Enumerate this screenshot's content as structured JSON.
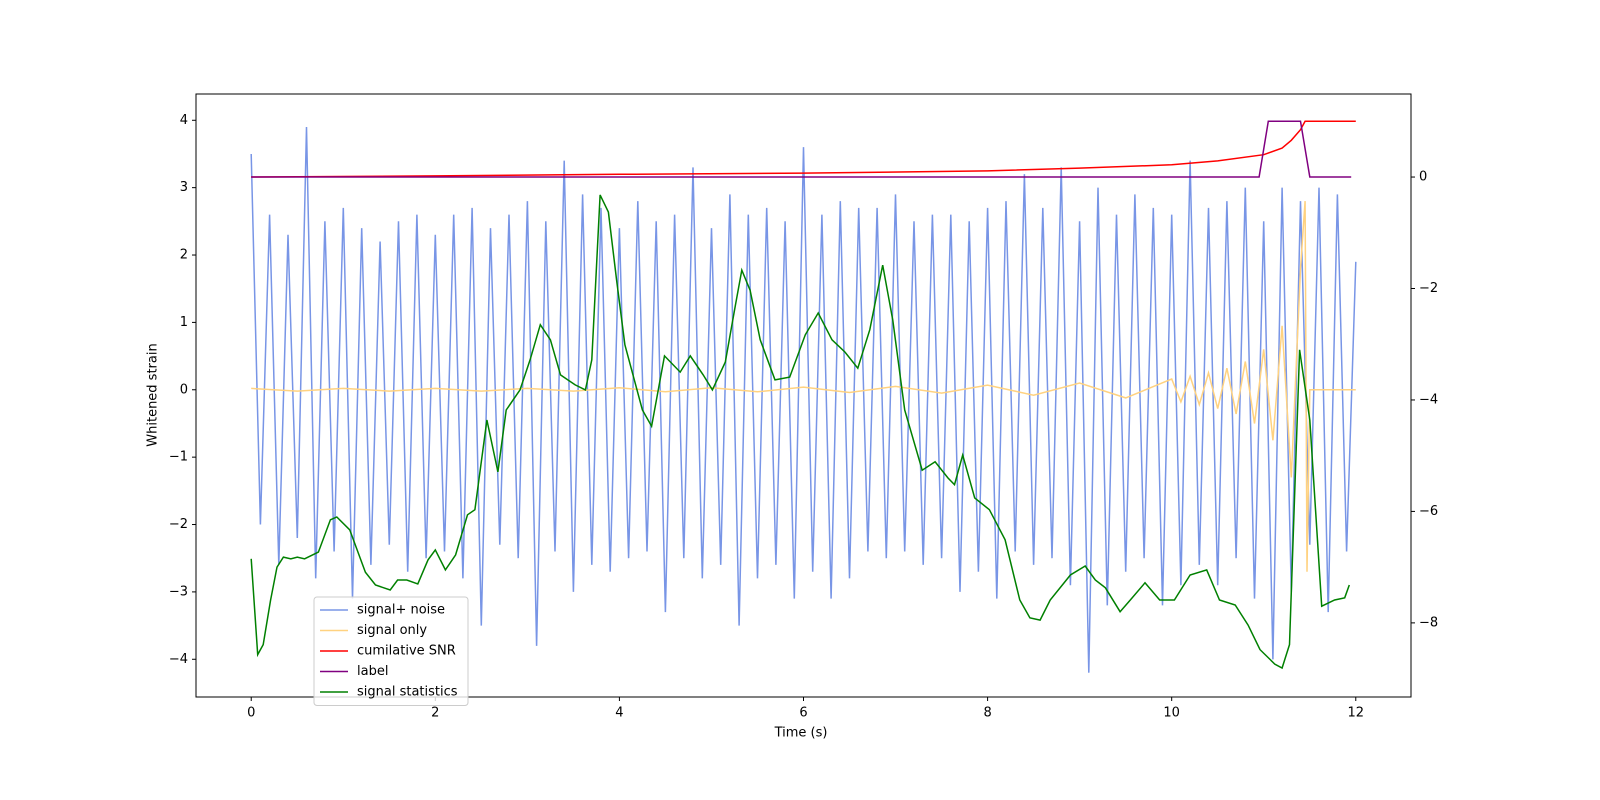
{
  "chart_data": {
    "type": "line",
    "xlabel": "Time (s)",
    "ylabel": "Whitened strain",
    "xlim": [
      -0.6,
      12.6
    ],
    "ylim": [
      -4.56,
      4.39
    ],
    "y2lim": [
      -9.33,
      1.49
    ],
    "xticks": [
      0,
      2,
      4,
      6,
      8,
      10,
      12
    ],
    "yticks": [
      {
        "value": -4,
        "label": "−4"
      },
      {
        "value": -3,
        "label": "−3"
      },
      {
        "value": -2,
        "label": "−2"
      },
      {
        "value": -1,
        "label": "−1"
      },
      0,
      1,
      2,
      3,
      4
    ],
    "y2ticks": [
      {
        "value": -8,
        "label": "−8"
      },
      {
        "value": -6,
        "label": "−6"
      },
      {
        "value": -4,
        "label": "−4"
      },
      {
        "value": -2,
        "label": "−2"
      },
      0
    ],
    "legend": "lower left",
    "x": [
      0,
      0.1,
      0.2,
      0.3,
      0.4,
      0.5,
      0.6,
      0.7,
      0.8,
      0.9,
      1,
      1.1,
      1.2,
      1.3,
      1.4,
      1.5,
      1.6,
      1.7,
      1.8,
      1.9,
      2,
      2.1,
      2.2,
      2.3,
      2.4,
      2.5,
      2.6,
      2.7,
      2.8,
      2.9,
      3,
      3.1,
      3.2,
      3.3,
      3.4,
      3.5,
      3.6,
      3.7,
      3.8,
      3.9,
      4,
      4.1,
      4.2,
      4.3,
      4.4,
      4.5,
      4.6,
      4.7,
      4.8,
      4.9,
      5,
      5.1,
      5.2,
      5.3,
      5.4,
      5.5,
      5.6,
      5.7,
      5.8,
      5.9,
      6,
      6.1,
      6.2,
      6.3,
      6.4,
      6.5,
      6.6,
      6.7,
      6.8,
      6.9,
      7,
      7.1,
      7.2,
      7.3,
      7.4,
      7.5,
      7.6,
      7.7,
      7.8,
      7.9,
      8,
      8.1,
      8.2,
      8.3,
      8.4,
      8.5,
      8.6,
      8.7,
      8.8,
      8.9,
      9,
      9.1,
      9.2,
      9.3,
      9.4,
      9.5,
      9.6,
      9.7,
      9.8,
      9.9,
      10,
      10.1,
      10.2,
      10.3,
      10.4,
      10.5,
      10.6,
      10.7,
      10.8,
      10.9,
      11,
      11.1,
      11.2,
      11.3,
      11.4,
      11.5,
      11.6,
      11.7,
      11.8,
      11.9,
      12
    ],
    "series": [
      {
        "name": "signal+ noise",
        "color": "#7895e6",
        "axis": "y",
        "values": [
          3.5,
          -2.0,
          2.6,
          -2.6,
          2.3,
          -2.2,
          3.9,
          -2.8,
          2.5,
          -2.4,
          2.7,
          -3.1,
          2.4,
          -2.6,
          2.2,
          -2.3,
          2.5,
          -2.7,
          2.6,
          -2.5,
          2.3,
          -2.4,
          2.6,
          -2.8,
          2.7,
          -3.5,
          2.4,
          -2.3,
          2.6,
          -2.5,
          2.8,
          -3.8,
          2.5,
          -2.4,
          3.4,
          -3.0,
          2.9,
          -2.6,
          2.7,
          -2.7,
          2.4,
          -2.5,
          2.8,
          -2.4,
          2.5,
          -3.3,
          2.6,
          -2.5,
          3.3,
          -2.8,
          2.4,
          -2.6,
          2.9,
          -3.5,
          2.6,
          -2.8,
          2.7,
          -2.6,
          2.5,
          -3.1,
          3.6,
          -2.7,
          2.6,
          -3.1,
          2.8,
          -2.8,
          2.7,
          -2.4,
          2.7,
          -2.5,
          2.9,
          -2.4,
          2.5,
          -2.6,
          2.6,
          -2.5,
          2.6,
          -3.0,
          2.5,
          -2.7,
          2.7,
          -3.1,
          2.8,
          -2.4,
          3.2,
          -2.6,
          2.7,
          -2.5,
          3.3,
          -2.9,
          2.5,
          -4.2,
          3.0,
          -3.2,
          2.6,
          -2.7,
          2.9,
          -2.5,
          2.7,
          -3.2,
          2.6,
          -2.9,
          3.4,
          -2.6,
          2.7,
          -2.9,
          2.8,
          -2.5,
          3.0,
          -3.1,
          2.5,
          -4.0,
          3.0,
          -3.0,
          2.8,
          -2.3,
          3.0,
          -3.3,
          2.9,
          -2.4,
          1.9
        ]
      },
      {
        "name": "signal only",
        "color": "#ffd280",
        "axis": "y",
        "x": [
          0,
          0.5,
          1,
          1.5,
          2,
          2.5,
          3,
          3.5,
          4,
          4.5,
          5,
          5.5,
          6,
          6.5,
          7,
          7.5,
          8,
          8.5,
          9,
          9.5,
          10,
          10.1,
          10.2,
          10.3,
          10.4,
          10.5,
          10.6,
          10.7,
          10.8,
          10.9,
          11,
          11.1,
          11.2,
          11.3,
          11.4,
          11.45,
          11.47,
          11.5,
          12
        ],
        "values": [
          0.02,
          -0.02,
          0.02,
          -0.02,
          0.02,
          -0.02,
          0.02,
          -0.02,
          0.03,
          -0.03,
          0.03,
          -0.03,
          0.04,
          -0.04,
          0.05,
          -0.05,
          0.07,
          -0.08,
          0.1,
          -0.12,
          0.16,
          -0.18,
          0.2,
          -0.22,
          0.25,
          -0.28,
          0.32,
          -0.36,
          0.42,
          -0.5,
          0.6,
          -0.75,
          0.95,
          -1.3,
          1.8,
          2.8,
          -2.7,
          0,
          0
        ]
      },
      {
        "name": "cumilative SNR",
        "color": "#ff0000",
        "axis": "y2",
        "x": [
          0,
          2,
          4,
          6,
          8,
          9,
          10,
          10.5,
          11,
          11.2,
          11.3,
          11.4,
          11.45,
          12
        ],
        "values": [
          0,
          0.02,
          0.05,
          0.07,
          0.11,
          0.16,
          0.22,
          0.29,
          0.4,
          0.52,
          0.66,
          0.85,
          1.0,
          1.0
        ]
      },
      {
        "name": "label",
        "color": "#800080",
        "axis": "y2",
        "x": [
          0,
          10.95,
          11.05,
          11.4,
          11.5,
          11.95
        ],
        "values": [
          0,
          0,
          1,
          1,
          0,
          0
        ]
      },
      {
        "name": "signal statistics",
        "color": "#008000",
        "axis": "y2",
        "x": [
          0,
          0.07,
          0.13,
          0.21,
          0.28,
          0.35,
          0.43,
          0.5,
          0.58,
          0.73,
          0.86,
          0.93,
          1.07,
          1.24,
          1.35,
          1.51,
          1.59,
          1.69,
          1.81,
          1.92,
          2.0,
          2.11,
          2.22,
          2.35,
          2.43,
          2.56,
          2.68,
          2.77,
          2.92,
          3.03,
          3.14,
          3.25,
          3.36,
          3.52,
          3.63,
          3.7,
          3.79,
          3.88,
          3.97,
          4.06,
          4.25,
          4.35,
          4.49,
          4.66,
          4.77,
          4.91,
          5.01,
          5.15,
          5.26,
          5.33,
          5.42,
          5.53,
          5.69,
          5.85,
          6.02,
          6.16,
          6.31,
          6.45,
          6.59,
          6.72,
          6.86,
          6.97,
          7.1,
          7.29,
          7.43,
          7.57,
          7.64,
          7.73,
          7.86,
          8.02,
          8.19,
          8.35,
          8.46,
          8.57,
          8.68,
          8.9,
          9.06,
          9.17,
          9.28,
          9.44,
          9.55,
          9.71,
          9.87,
          10.03,
          10.2,
          10.38,
          10.52,
          10.69,
          10.83,
          10.96,
          11.12,
          11.2,
          11.28,
          11.39,
          11.5,
          11.63,
          11.77,
          11.88,
          11.93
        ],
        "values": [
          -6.85,
          -8.57,
          -8.39,
          -7.59,
          -7.0,
          -6.82,
          -6.85,
          -6.82,
          -6.85,
          -6.73,
          -6.15,
          -6.1,
          -6.33,
          -7.09,
          -7.32,
          -7.41,
          -7.23,
          -7.23,
          -7.3,
          -6.87,
          -6.69,
          -7.05,
          -6.78,
          -6.06,
          -5.97,
          -4.36,
          -5.29,
          -4.18,
          -3.82,
          -3.28,
          -2.65,
          -2.92,
          -3.55,
          -3.73,
          -3.82,
          -3.28,
          -0.32,
          -0.63,
          -1.85,
          -3.01,
          -4.18,
          -4.47,
          -3.21,
          -3.5,
          -3.21,
          -3.55,
          -3.82,
          -3.32,
          -2.3,
          -1.67,
          -2.03,
          -2.92,
          -3.64,
          -3.59,
          -2.83,
          -2.44,
          -2.92,
          -3.14,
          -3.43,
          -2.74,
          -1.58,
          -2.57,
          -4.18,
          -5.26,
          -5.11,
          -5.4,
          -5.52,
          -4.99,
          -5.76,
          -5.97,
          -6.51,
          -7.59,
          -7.91,
          -7.95,
          -7.59,
          -7.14,
          -6.98,
          -7.23,
          -7.37,
          -7.8,
          -7.59,
          -7.28,
          -7.59,
          -7.59,
          -7.14,
          -7.05,
          -7.59,
          -7.68,
          -8.04,
          -8.48,
          -8.74,
          -8.81,
          -8.39,
          -3.1,
          -4.36,
          -7.7,
          -7.59,
          -7.55,
          -7.32
        ]
      }
    ]
  }
}
